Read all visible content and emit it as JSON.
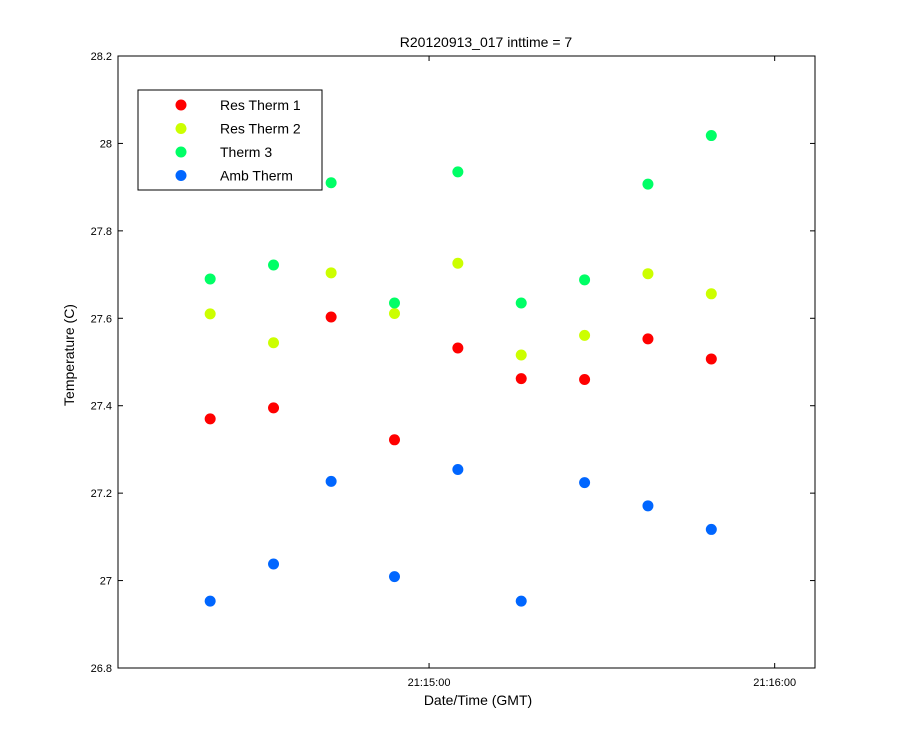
{
  "chart_data": {
    "type": "scatter",
    "title": "R20120913_017 inttime = 7",
    "xlabel": "Date/Time (GMT)",
    "ylabel": "Temperature (C)",
    "ylim": [
      26.8,
      28.2
    ],
    "yticks": [
      "26.8",
      "27",
      "27.2",
      "27.4",
      "27.6",
      "27.8",
      "28",
      "28.2"
    ],
    "xlim": [
      "21:14:06",
      "21:16:07"
    ],
    "xticks": [
      "21:15:00",
      "21:16:00"
    ],
    "x": [
      "21:14:22",
      "21:14:33",
      "21:14:43",
      "21:14:54",
      "21:15:05",
      "21:15:16",
      "21:15:27",
      "21:15:38",
      "21:15:49"
    ],
    "grid": false,
    "legend_position": "top-left",
    "series": [
      {
        "name": "Res Therm 1",
        "color": "#ff0000",
        "values": [
          27.37,
          27.395,
          27.603,
          27.322,
          27.532,
          27.462,
          27.46,
          27.553,
          27.507
        ]
      },
      {
        "name": "Res Therm 2",
        "color": "#ccff00",
        "values": [
          27.61,
          27.544,
          27.704,
          27.611,
          27.726,
          27.516,
          27.561,
          27.702,
          27.656
        ]
      },
      {
        "name": "Therm 3",
        "color": "#00ff66",
        "values": [
          27.69,
          27.722,
          27.91,
          27.635,
          27.935,
          27.635,
          27.688,
          27.907,
          28.018
        ]
      },
      {
        "name": "Amb Therm",
        "color": "#0066ff",
        "values": [
          26.953,
          27.038,
          27.227,
          27.009,
          27.254,
          26.953,
          27.224,
          27.171,
          27.117
        ]
      }
    ]
  }
}
